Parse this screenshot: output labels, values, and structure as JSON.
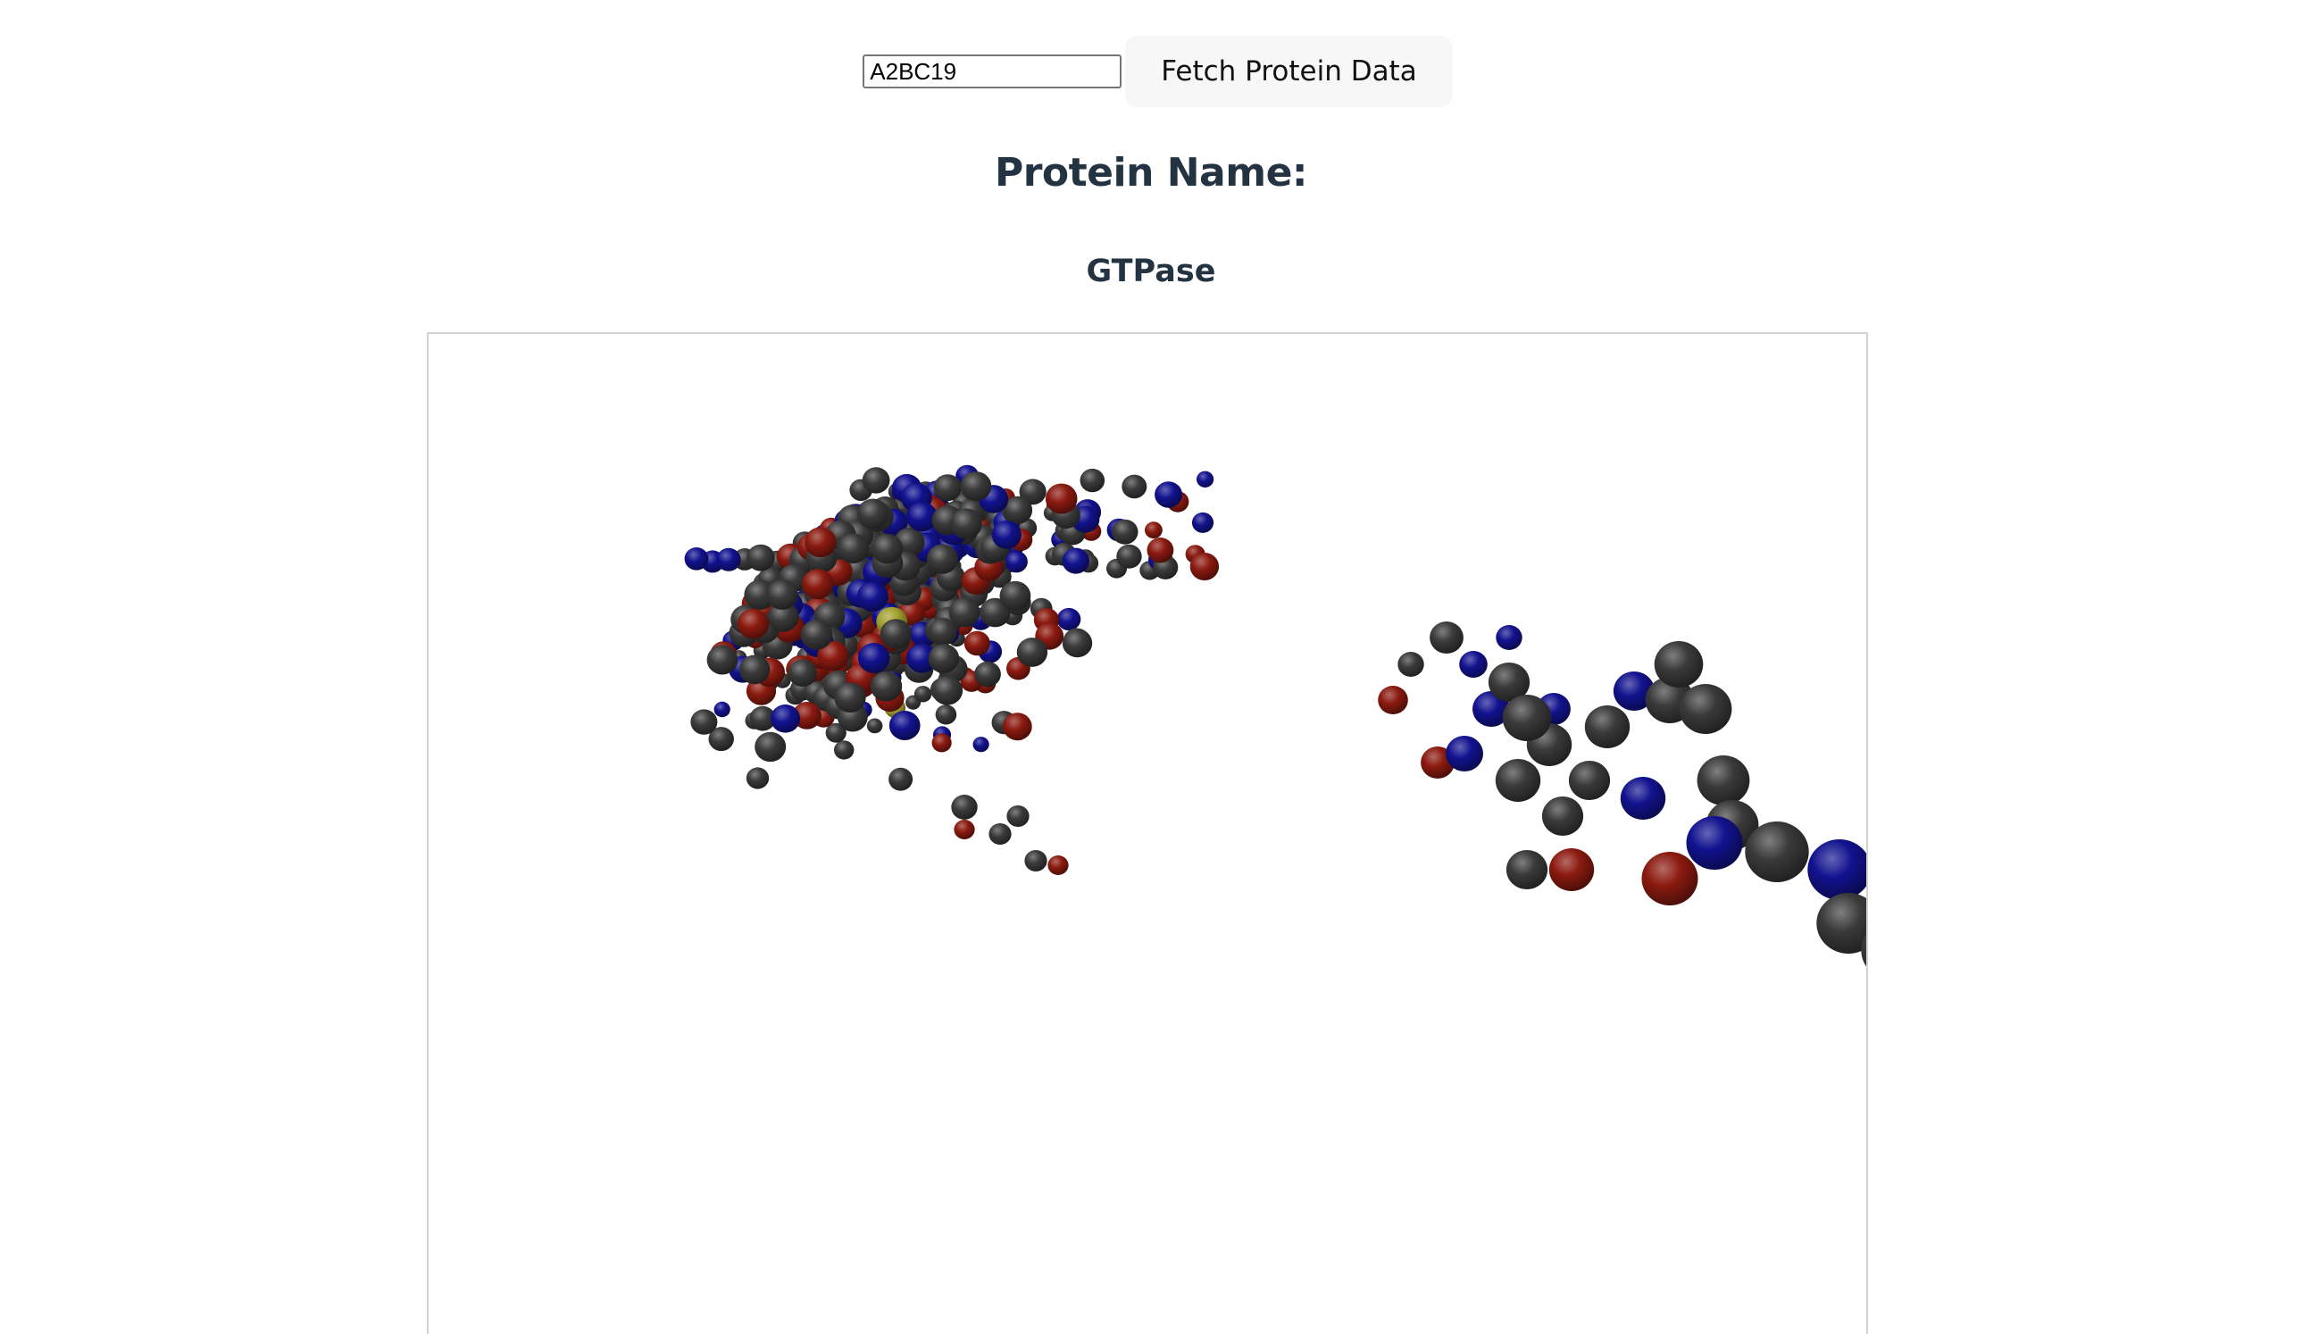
{
  "search": {
    "input_value": "A2BC19",
    "button_label": "Fetch Protein Data"
  },
  "protein": {
    "heading": "Protein Name:",
    "name": "GTPase"
  },
  "viewer": {
    "atom_colors": {
      "carbon": "#3a3a3a",
      "oxygen": "#8b1a10",
      "nitrogen": "#12128f",
      "sulfur": "#a3a12e"
    }
  }
}
